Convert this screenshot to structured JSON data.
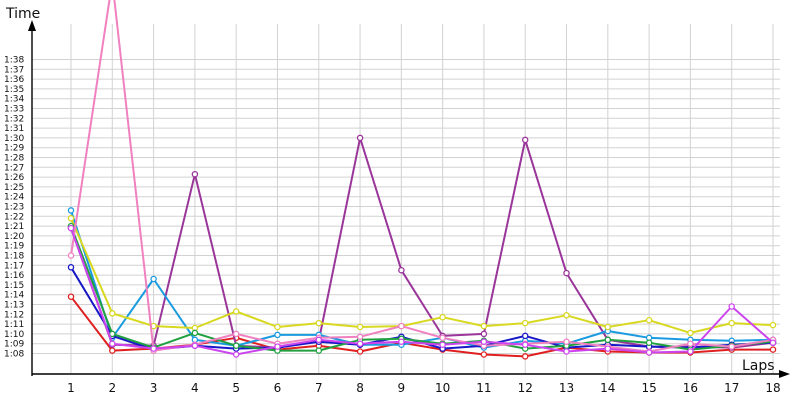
{
  "chart_data": {
    "type": "line",
    "xlabel": "Laps",
    "ylabel": "Time",
    "x": [
      1,
      2,
      3,
      4,
      5,
      6,
      7,
      8,
      9,
      10,
      11,
      12,
      13,
      14,
      15,
      16,
      17,
      18
    ],
    "y_tick_labels": [
      "1:08",
      "1:09",
      "1:10",
      "1:11",
      "1:12",
      "1:13",
      "1:14",
      "1:15",
      "1:16",
      "1:17",
      "1:18",
      "1:19",
      "1:20",
      "1:21",
      "1:22",
      "1:23",
      "1:24",
      "1:25",
      "1:26",
      "1:27",
      "1:28",
      "1:29",
      "1:30",
      "1:31",
      "1:32",
      "1:33",
      "1:34",
      "1:35",
      "1:36",
      "1:37",
      "1:38"
    ],
    "ylim_seconds": [
      66,
      104
    ],
    "grid": true,
    "series": [
      {
        "color": "#e02020",
        "values": [
          73.8,
          68.3,
          68.5,
          68.9,
          69.6,
          68.4,
          68.8,
          68.2,
          69.1,
          68.4,
          67.9,
          67.7,
          68.6,
          68.2,
          68.1,
          68.1,
          68.4,
          68.4
        ]
      },
      {
        "color": "#9a359a",
        "values": [
          80.8,
          68.9,
          68.8,
          86.3,
          68.8,
          68.6,
          69.3,
          90.0,
          76.5,
          69.8,
          70.0,
          89.8,
          76.2,
          69.4,
          68.7,
          68.7,
          68.6,
          69.1
        ]
      },
      {
        "color": "#1a9be0",
        "values": [
          82.6,
          69.6,
          75.6,
          69.4,
          68.8,
          69.9,
          69.9,
          68.9,
          68.9,
          69.6,
          68.6,
          69.3,
          69.0,
          70.3,
          69.6,
          69.4,
          69.3,
          69.4
        ]
      },
      {
        "color": "#d8d820",
        "values": [
          81.8,
          72.1,
          70.8,
          70.6,
          72.3,
          70.7,
          71.1,
          70.7,
          70.8,
          71.7,
          70.8,
          71.1,
          71.9,
          70.7,
          71.4,
          70.1,
          71.1,
          70.9
        ]
      },
      {
        "color": "#1818c8",
        "values": [
          76.8,
          69.8,
          68.4,
          68.8,
          68.5,
          68.6,
          69.2,
          68.9,
          69.7,
          68.5,
          68.8,
          69.8,
          68.6,
          68.9,
          68.7,
          68.6,
          68.9,
          69.1
        ]
      },
      {
        "color": "#20a040",
        "values": [
          81.0,
          70.0,
          68.6,
          70.1,
          68.8,
          68.3,
          68.3,
          69.4,
          69.5,
          69.0,
          69.3,
          68.5,
          68.8,
          69.4,
          69.1,
          68.4,
          68.8,
          69.2
        ]
      },
      {
        "color": "#f080c0",
        "values": [
          78.0,
          106.0,
          68.3,
          68.9,
          70.0,
          69.0,
          69.6,
          69.7,
          70.8,
          69.6,
          68.8,
          69.0,
          69.2,
          68.7,
          68.2,
          69.0,
          68.7,
          69.4
        ]
      },
      {
        "color": "#cc44ee",
        "values": [
          80.8,
          69.0,
          68.5,
          68.8,
          67.9,
          68.7,
          69.4,
          69.0,
          69.2,
          68.9,
          69.2,
          68.9,
          68.2,
          68.5,
          68.1,
          68.2,
          72.8,
          69.1
        ]
      }
    ]
  }
}
